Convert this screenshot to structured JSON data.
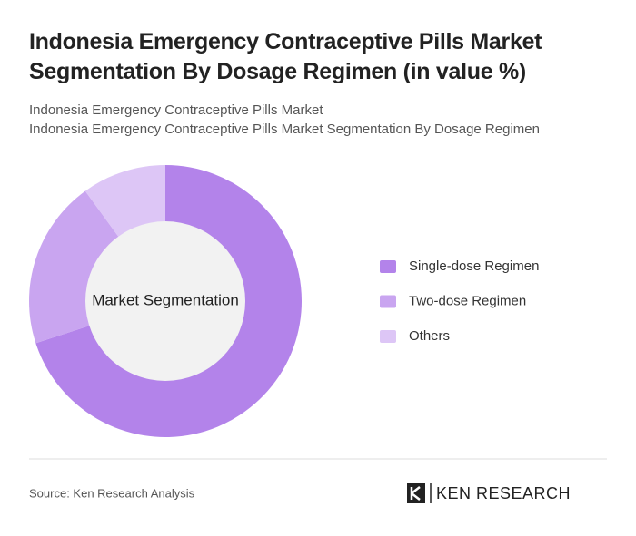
{
  "title": "Indonesia Emergency Contraceptive Pills Market Segmentation By Dosage Regimen (in value %)",
  "subtitle": [
    "Indonesia Emergency Contraceptive Pills Market",
    "Indonesia Emergency Contraceptive Pills Market Segmentation By Dosage Regimen"
  ],
  "chart_data": {
    "type": "pie",
    "center_label": "Market Segmentation",
    "categories": [
      "Single-dose Regimen",
      "Two-dose Regimen",
      "Others"
    ],
    "values": [
      70,
      20,
      10
    ],
    "colors": [
      "#b383ea",
      "#c9a5f0",
      "#ddc6f6"
    ]
  },
  "source": "Source: Ken Research Analysis",
  "logo": "KEN RESEARCH"
}
